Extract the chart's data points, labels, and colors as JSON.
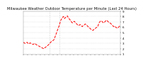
{
  "title": "Milwaukee Weather Outdoor Temperature per Minute (Last 24 Hours)",
  "line_color": "#ff0000",
  "bg_color": "#ffffff",
  "plot_bg_color": "#ffffff",
  "grid_color": "#bbbbbb",
  "vline_color": "#aaaaaa",
  "vline_positions": [
    0.27,
    0.37
  ],
  "ylim": [
    1,
    9
  ],
  "yticks": [
    1,
    2,
    3,
    4,
    5,
    6,
    7,
    8,
    9
  ],
  "x": [
    0,
    1,
    2,
    3,
    4,
    5,
    6,
    7,
    8,
    9,
    10,
    11,
    12,
    13,
    14,
    15,
    16,
    17,
    18,
    19,
    20,
    21,
    22,
    23,
    24,
    25,
    26,
    27,
    28,
    29,
    30,
    31,
    32,
    33,
    34,
    35,
    36,
    37,
    38,
    39,
    40,
    41,
    42,
    43,
    44,
    45,
    46,
    47,
    48,
    49,
    50,
    51,
    52,
    53,
    54,
    55,
    56,
    57,
    58,
    59,
    60,
    61,
    62,
    63,
    64,
    65,
    66,
    67,
    68,
    69,
    70,
    71,
    72,
    73,
    74,
    75,
    76,
    77,
    78,
    79,
    80,
    81,
    82,
    83,
    84,
    85,
    86,
    87,
    88,
    89,
    90,
    91,
    92,
    93,
    94,
    95,
    96,
    97,
    98,
    99
  ],
  "y": [
    3.2,
    3.1,
    3.0,
    3.1,
    3.2,
    3.0,
    2.9,
    3.1,
    3.0,
    2.9,
    2.8,
    2.9,
    3.0,
    2.8,
    2.7,
    2.6,
    2.5,
    2.4,
    2.3,
    2.2,
    2.1,
    2.0,
    2.2,
    2.3,
    2.5,
    2.6,
    2.8,
    3.0,
    3.2,
    3.4,
    3.5,
    3.6,
    4.0,
    4.5,
    5.0,
    5.5,
    6.0,
    6.5,
    7.2,
    7.5,
    7.8,
    8.0,
    7.6,
    7.8,
    7.9,
    8.1,
    7.7,
    7.5,
    7.3,
    7.0,
    6.8,
    7.0,
    7.1,
    6.9,
    6.7,
    6.5,
    6.3,
    6.4,
    6.5,
    6.3,
    6.1,
    6.3,
    6.4,
    6.6,
    6.5,
    6.3,
    6.1,
    5.9,
    5.8,
    5.6,
    5.5,
    5.4,
    5.6,
    5.7,
    5.9,
    6.0,
    6.2,
    6.8,
    7.0,
    7.2,
    7.1,
    6.9,
    6.8,
    7.0,
    7.2,
    7.3,
    7.1,
    6.9,
    6.8,
    6.7,
    6.5,
    6.3,
    6.1,
    6.2,
    6.0,
    5.9,
    5.8,
    6.0,
    6.2,
    6.1
  ],
  "linewidth": 0.7,
  "linestyle": "--",
  "title_fontsize": 3.8,
  "tick_fontsize": 3.0,
  "num_xticks": 24
}
